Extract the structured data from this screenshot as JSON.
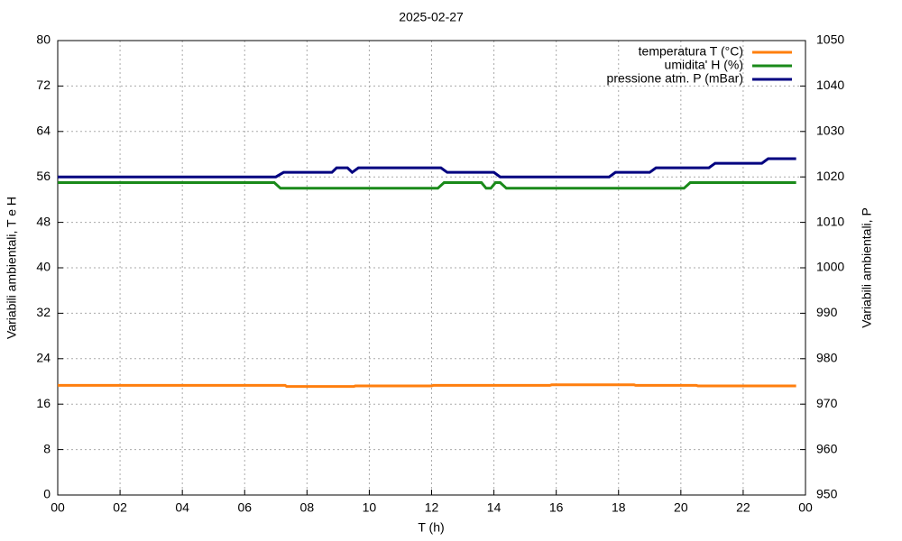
{
  "chart_data": {
    "type": "line",
    "title": "2025-02-27",
    "xlabel": "T (h)",
    "ylabel": "Variabili ambientali, T e H",
    "y2label": "Variabili ambientali, P",
    "xlim": [
      0,
      24
    ],
    "xticks": [
      {
        "value": 0,
        "label": "00"
      },
      {
        "value": 2,
        "label": "02"
      },
      {
        "value": 4,
        "label": "04"
      },
      {
        "value": 6,
        "label": "06"
      },
      {
        "value": 8,
        "label": "08"
      },
      10,
      12,
      14,
      16,
      18,
      20,
      22,
      {
        "value": 24,
        "label": "00"
      }
    ],
    "ylim": [
      0,
      80
    ],
    "yticks": [
      0,
      8,
      16,
      24,
      32,
      40,
      48,
      56,
      64,
      72,
      80
    ],
    "y2lim": [
      950,
      1050
    ],
    "y2ticks": [
      950,
      960,
      970,
      980,
      990,
      1000,
      1010,
      1020,
      1030,
      1040,
      1050
    ],
    "grid": true,
    "legend": "top-right",
    "series": [
      {
        "name": "temperatura T (°C)",
        "color": "#ff7f0e",
        "x": [
          0,
          7.3,
          7.35,
          9.5,
          9.55,
          12.0,
          12.05,
          15.8,
          15.85,
          18.5,
          18.55,
          20.5,
          20.55,
          23.7
        ],
        "values": [
          19.3,
          19.3,
          19.1,
          19.1,
          19.2,
          19.2,
          19.3,
          19.3,
          19.4,
          19.4,
          19.3,
          19.3,
          19.2,
          19.2
        ]
      },
      {
        "name": "umidita' H (%)",
        "color": "#1a8a1a",
        "x": [
          0,
          6.95,
          7.15,
          12.2,
          12.4,
          13.6,
          13.75,
          13.9,
          14.05,
          14.2,
          14.4,
          20.1,
          20.3,
          23.7
        ],
        "values": [
          55,
          55,
          54,
          54,
          55,
          55,
          54,
          54,
          55,
          55,
          54,
          54,
          55,
          55
        ]
      },
      {
        "name": "pressione atm. P (mBar)",
        "color": "#000080",
        "axis": "y2",
        "x": [
          0,
          7.0,
          7.25,
          8.8,
          8.95,
          9.3,
          9.45,
          9.65,
          12.3,
          12.5,
          14.0,
          14.2,
          17.7,
          17.9,
          19.0,
          19.2,
          20.9,
          21.1,
          22.6,
          22.8,
          23.7
        ],
        "values": [
          1020,
          1020,
          1021,
          1021,
          1022,
          1022,
          1021,
          1022,
          1022,
          1021,
          1021,
          1020,
          1020,
          1021,
          1021,
          1022,
          1022,
          1023,
          1023,
          1024,
          1024
        ]
      }
    ]
  }
}
